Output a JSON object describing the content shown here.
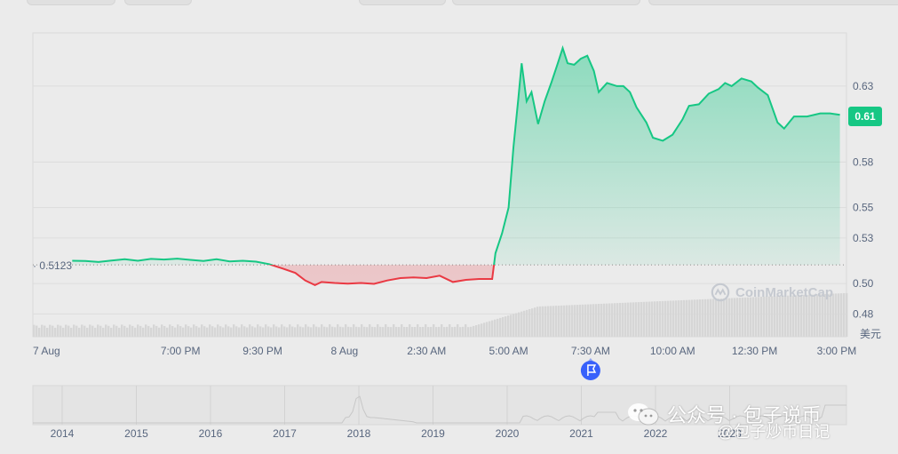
{
  "chart_data": {
    "type": "area",
    "baseline": 0.5123,
    "baseline_label": "0.5123",
    "current_value": 0.61,
    "current_label": "0.61",
    "y_ticks": [
      "0.63",
      "0.58",
      "0.55",
      "0.53",
      "0.50",
      "0.48"
    ],
    "y_tick_values": [
      0.63,
      0.58,
      0.55,
      0.53,
      0.5,
      0.48
    ],
    "ylim": [
      0.465,
      0.665
    ],
    "y_unit": "美元",
    "x_ticks": [
      "7 Aug",
      "7:00 PM",
      "9:30 PM",
      "8 Aug",
      "2:30 AM",
      "5:00 AM",
      "7:30 AM",
      "10:00 AM",
      "12:30 PM",
      "3:00 PM"
    ],
    "x_tick_hours": [
      0,
      4.5,
      7,
      9.5,
      12,
      14.5,
      17,
      19.5,
      22,
      24.5
    ],
    "xlim": [
      0,
      24.8
    ],
    "series": [
      {
        "points": [
          [
            1.2,
            0.515
          ],
          [
            1.6,
            0.5148
          ],
          [
            2.0,
            0.5142
          ],
          [
            2.4,
            0.5152
          ],
          [
            2.8,
            0.516
          ],
          [
            3.2,
            0.515
          ],
          [
            3.6,
            0.5162
          ],
          [
            4.0,
            0.5158
          ],
          [
            4.4,
            0.5164
          ],
          [
            4.8,
            0.5156
          ],
          [
            5.2,
            0.5148
          ],
          [
            5.6,
            0.516
          ],
          [
            6.0,
            0.5146
          ],
          [
            6.4,
            0.515
          ],
          [
            6.8,
            0.5144
          ],
          [
            7.2,
            0.5128
          ],
          [
            7.6,
            0.51
          ],
          [
            8.0,
            0.507
          ],
          [
            8.3,
            0.502
          ],
          [
            8.6,
            0.499
          ],
          [
            8.8,
            0.501
          ],
          [
            9.2,
            0.5004
          ],
          [
            9.6,
            0.5
          ],
          [
            10.0,
            0.5004
          ],
          [
            10.4,
            0.4998
          ],
          [
            10.8,
            0.502
          ],
          [
            11.2,
            0.5036
          ],
          [
            11.6,
            0.504
          ],
          [
            12.0,
            0.5036
          ],
          [
            12.4,
            0.5052
          ],
          [
            12.8,
            0.501
          ],
          [
            13.2,
            0.5024
          ],
          [
            13.6,
            0.503
          ],
          [
            14.0,
            0.503
          ],
          [
            14.1,
            0.52
          ],
          [
            14.3,
            0.533
          ],
          [
            14.5,
            0.55
          ],
          [
            14.65,
            0.59
          ],
          [
            14.8,
            0.622
          ],
          [
            14.9,
            0.645
          ],
          [
            15.05,
            0.62
          ],
          [
            15.2,
            0.626
          ],
          [
            15.4,
            0.605
          ],
          [
            15.6,
            0.62
          ],
          [
            15.8,
            0.632
          ],
          [
            16.0,
            0.645
          ],
          [
            16.15,
            0.655
          ],
          [
            16.3,
            0.645
          ],
          [
            16.5,
            0.644
          ],
          [
            16.7,
            0.648
          ],
          [
            16.9,
            0.65
          ],
          [
            17.1,
            0.64
          ],
          [
            17.25,
            0.626
          ],
          [
            17.5,
            0.632
          ],
          [
            17.8,
            0.63
          ],
          [
            18.0,
            0.63
          ],
          [
            18.2,
            0.626
          ],
          [
            18.4,
            0.616
          ],
          [
            18.7,
            0.606
          ],
          [
            18.9,
            0.596
          ],
          [
            19.2,
            0.594
          ],
          [
            19.5,
            0.598
          ],
          [
            19.8,
            0.608
          ],
          [
            20.0,
            0.617
          ],
          [
            20.3,
            0.618
          ],
          [
            20.6,
            0.625
          ],
          [
            20.9,
            0.628
          ],
          [
            21.1,
            0.632
          ],
          [
            21.3,
            0.63
          ],
          [
            21.6,
            0.635
          ],
          [
            21.9,
            0.633
          ],
          [
            22.1,
            0.629
          ],
          [
            22.4,
            0.624
          ],
          [
            22.7,
            0.606
          ],
          [
            22.9,
            0.602
          ],
          [
            23.2,
            0.61
          ],
          [
            23.6,
            0.61
          ],
          [
            24.0,
            0.612
          ],
          [
            24.3,
            0.612
          ],
          [
            24.6,
            0.611
          ]
        ]
      }
    ],
    "up_color": "#16c784",
    "down_color": "#ea3943",
    "flag_color": "#3861fb",
    "navigator": {
      "years": [
        "2014",
        "2015",
        "2016",
        "2017",
        "2018",
        "2019",
        "2020",
        "2021",
        "2022",
        "2023"
      ],
      "year_positions_frac": [
        0.0,
        0.1,
        0.2,
        0.3,
        0.4,
        0.5,
        0.6,
        0.7,
        0.8,
        0.9
      ]
    }
  },
  "watermark": {
    "line1": "公众号 · 包子说币",
    "line2": "@包子炒币日记"
  },
  "brand": {
    "name": "CoinMarketCap"
  }
}
